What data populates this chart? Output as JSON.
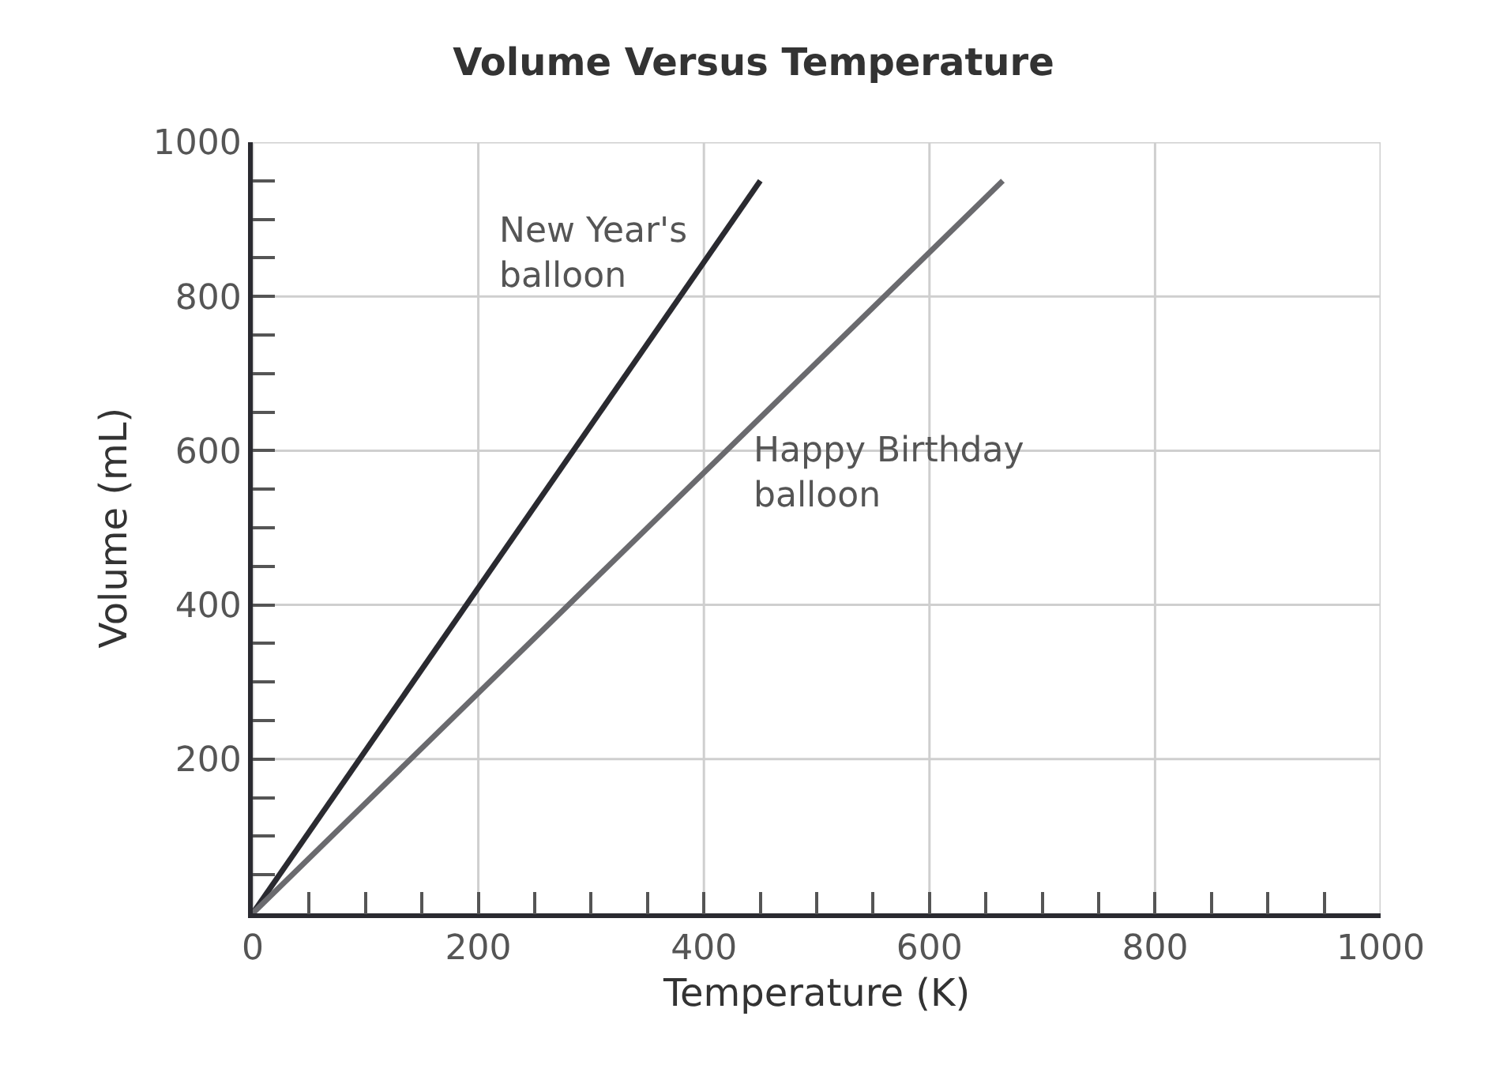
{
  "chart_data": {
    "type": "line",
    "title": "Volume Versus Temperature",
    "xlabel": "Temperature (K)",
    "ylabel": "Volume (mL)",
    "x": [
      0,
      450
    ],
    "series": [
      {
        "name": "New Year's balloon",
        "color": "#2a2a30",
        "values": [
          0,
          950
        ]
      },
      {
        "name": "Happy Birthday balloon",
        "color": "#6a6a6e",
        "x": [
          0,
          665
        ],
        "values": [
          0,
          950
        ]
      }
    ],
    "xlim": [
      0,
      1000
    ],
    "ylim": [
      0,
      1000
    ],
    "xticks": [
      0,
      {
        "value": 50,
        "label": null
      },
      {
        "value": 100,
        "label": null
      },
      {
        "value": 150,
        "label": null
      },
      200,
      {
        "value": 250,
        "label": null
      },
      {
        "value": 300,
        "label": null
      },
      {
        "value": 350,
        "label": null
      },
      400,
      {
        "value": 450,
        "label": null
      },
      {
        "value": 500,
        "label": null
      },
      {
        "value": 550,
        "label": null
      },
      600,
      {
        "value": 650,
        "label": null
      },
      {
        "value": 700,
        "label": null
      },
      {
        "value": 750,
        "label": null
      },
      800,
      {
        "value": 850,
        "label": null
      },
      {
        "value": 900,
        "label": null
      },
      {
        "value": 950,
        "label": null
      },
      1000
    ],
    "yticks": [
      {
        "value": 50,
        "label": null
      },
      {
        "value": 100,
        "label": null
      },
      {
        "value": 150,
        "label": null
      },
      200,
      {
        "value": 250,
        "label": null
      },
      {
        "value": 300,
        "label": null
      },
      {
        "value": 350,
        "label": null
      },
      400,
      {
        "value": 450,
        "label": null
      },
      {
        "value": 500,
        "label": null
      },
      {
        "value": 550,
        "label": null
      },
      600,
      {
        "value": 650,
        "label": null
      },
      {
        "value": 700,
        "label": null
      },
      {
        "value": 750,
        "label": null
      },
      800,
      {
        "value": 850,
        "label": null
      },
      {
        "value": 900,
        "label": null
      },
      {
        "value": 950,
        "label": null
      },
      1000
    ],
    "grid": true,
    "marker": "none",
    "line_style": "solid"
  }
}
